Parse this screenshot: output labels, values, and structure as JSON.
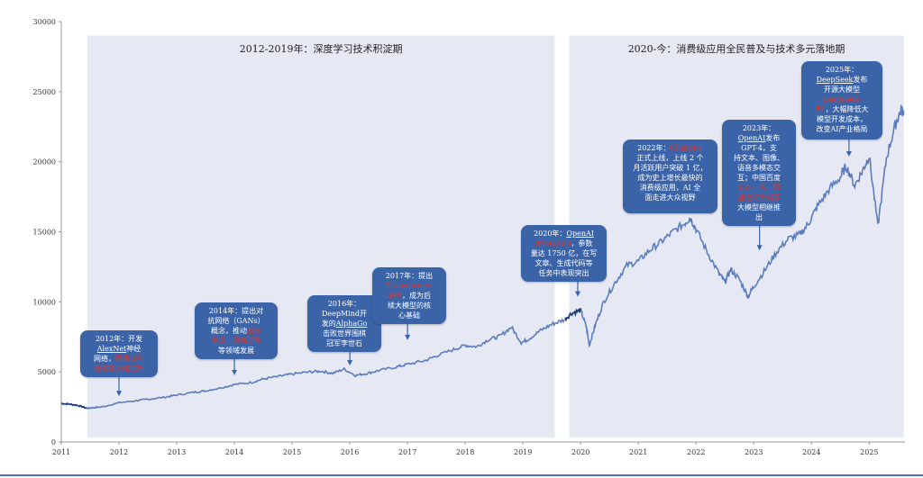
{
  "chart_data": {
    "type": "line",
    "title": "",
    "xlabel": "",
    "ylabel": "",
    "xlim": [
      2011,
      2025.6
    ],
    "ylim": [
      0,
      30000
    ],
    "y_ticks": [
      "0",
      "5000",
      "10000",
      "15000",
      "20000",
      "25000",
      "30000"
    ],
    "x_ticks": [
      "2011",
      "2012",
      "2013",
      "2014",
      "2015",
      "2016",
      "2017",
      "2018",
      "2019",
      "2020",
      "2021",
      "2022",
      "2023",
      "2024",
      "2025"
    ],
    "grid": false,
    "series": [
      {
        "color": "#5b7cbd",
        "dark_segment_color": "#1f3c7c",
        "x": [
          2011.0,
          2011.15,
          2011.3,
          2011.45,
          2011.55,
          2011.7,
          2012.0,
          2012.3,
          2012.5,
          2012.8,
          2013.0,
          2013.3,
          2013.5,
          2013.8,
          2014.0,
          2014.3,
          2014.5,
          2014.8,
          2015.0,
          2015.3,
          2015.5,
          2015.7,
          2015.9,
          2016.1,
          2016.3,
          2016.5,
          2016.8,
          2017.0,
          2017.3,
          2017.5,
          2017.8,
          2018.0,
          2018.2,
          2018.4,
          2018.6,
          2018.8,
          2018.97,
          2019.1,
          2019.3,
          2019.5,
          2019.7,
          2019.85,
          2020.0,
          2020.1,
          2020.15,
          2020.25,
          2020.4,
          2020.6,
          2020.8,
          2021.0,
          2021.2,
          2021.4,
          2021.6,
          2021.8,
          2021.9,
          2022.0,
          2022.2,
          2022.4,
          2022.5,
          2022.6,
          2022.75,
          2022.9,
          2023.0,
          2023.2,
          2023.4,
          2023.6,
          2023.8,
          2023.95,
          2024.1,
          2024.3,
          2024.5,
          2024.6,
          2024.75,
          2024.9,
          2025.0,
          2025.15,
          2025.3,
          2025.45,
          2025.55,
          2025.6
        ],
        "y": [
          2750,
          2700,
          2600,
          2400,
          2450,
          2500,
          2800,
          2950,
          3050,
          3200,
          3350,
          3550,
          3650,
          3900,
          4100,
          4250,
          4500,
          4700,
          4850,
          5000,
          5050,
          4900,
          5200,
          4750,
          4900,
          5100,
          5350,
          5550,
          5800,
          6150,
          6600,
          6900,
          6800,
          7300,
          7550,
          8200,
          7100,
          7350,
          7950,
          8400,
          8700,
          9200,
          9400,
          8200,
          6900,
          8300,
          10000,
          11400,
          12600,
          12900,
          13700,
          14300,
          15000,
          15600,
          16000,
          15200,
          13500,
          12000,
          11400,
          12300,
          11600,
          10400,
          11100,
          12300,
          13600,
          14500,
          14800,
          15600,
          16800,
          18000,
          18900,
          19700,
          18300,
          19500,
          20400,
          15400,
          20300,
          22600,
          23700,
          23600
        ]
      }
    ],
    "periods": [
      {
        "label": "2012-2019年：深度学习技术积淀期",
        "x_start": 2011.45,
        "x_end": 2019.55
      },
      {
        "label": "2020-今：消费级应用全民普及与技术多元落地期",
        "x_start": 2019.8,
        "x_end": 2025.6
      }
    ],
    "annotations": [
      {
        "year": "2012年：",
        "text": [
          [
            {
              "t": "2012年：开发"
            }
          ],
          [
            {
              "t": "AlexNet",
              "s": "ul"
            },
            {
              "t": "神经"
            }
          ],
          [
            {
              "t": "网络，"
            },
            {
              "t": "图像识别",
              "s": "hl"
            }
          ],
          [
            {
              "t": "准确率大幅提升",
              "s": "hl"
            }
          ]
        ],
        "arrow_x": 2012.0,
        "arrow_y": 3200
      },
      {
        "year": "2014年：",
        "text": [
          [
            {
              "t": "2014年：提出对"
            }
          ],
          [
            {
              "t": "抗网络（GANs）"
            }
          ],
          [
            {
              "t": "概念，推动"
            },
            {
              "t": "图像",
              "s": "hl"
            }
          ],
          [
            {
              "t": "生成、风格迁移",
              "s": "hl"
            }
          ],
          [
            {
              "t": "等领域发展"
            }
          ]
        ],
        "arrow_x": 2014.0,
        "arrow_y": 4700
      },
      {
        "year": "2016年：",
        "text": [
          [
            {
              "t": "2016年："
            }
          ],
          [
            {
              "t": "DeepMind开"
            }
          ],
          [
            {
              "t": "发的"
            },
            {
              "t": "AlphaGo",
              "s": "ul"
            }
          ],
          [
            {
              "t": "击败世界围棋"
            }
          ],
          [
            {
              "t": "冠军李世石"
            }
          ]
        ],
        "arrow_x": 2016.0,
        "arrow_y": 5400
      },
      {
        "year": "2017年：",
        "text": [
          [
            {
              "t": "2017年：提出"
            }
          ],
          [
            {
              "t": "Transformer",
              "s": "hl"
            }
          ],
          [
            {
              "t": "架构",
              "s": "hl"
            },
            {
              "t": "，成为后"
            }
          ],
          [
            {
              "t": "续大模型的核"
            }
          ],
          [
            {
              "t": "心基础"
            }
          ]
        ],
        "arrow_x": 2017.0,
        "arrow_y": 7200
      },
      {
        "year": "2020年：",
        "text": [
          [
            {
              "t": "2020年："
            },
            {
              "t": "OpenAI",
              "s": "ul"
            }
          ],
          [
            {
              "t": "发布GPT-3",
              "s": "hl"
            },
            {
              "t": "，参数"
            }
          ],
          [
            {
              "t": "量达 1750 亿，在写"
            }
          ],
          [
            {
              "t": "文章、生成代码等"
            }
          ],
          [
            {
              "t": "任务中表现突出"
            }
          ]
        ],
        "arrow_x": 2019.95,
        "arrow_y": 10300
      },
      {
        "year": "2022年：",
        "text": [
          [
            {
              "t": "2022年："
            },
            {
              "t": "ChatGPT",
              "s": "hl"
            }
          ],
          [
            {
              "t": "正式上线，上线 2 个"
            }
          ],
          [
            {
              "t": "月活跃用户突破 1 亿，"
            }
          ],
          [
            {
              "t": "成为史上增长最快的"
            }
          ],
          [
            {
              "t": "消费级应用，AI 全"
            }
          ],
          [
            {
              "t": "面走进大众视野"
            }
          ]
        ],
        "arrow_x": 2021.9,
        "arrow_y": 16500
      },
      {
        "year": "2023年：",
        "text": [
          [
            {
              "t": "2023年："
            }
          ],
          [
            {
              "t": "OpenAI",
              "s": "ul"
            },
            {
              "t": "发布"
            }
          ],
          [
            {
              "t": "GPT-4，支"
            }
          ],
          [
            {
              "t": "持文本、图像、"
            }
          ],
          [
            {
              "t": "语音多模态交"
            }
          ],
          [
            {
              "t": "互；中国百度"
            }
          ],
          [
            {
              "t": "文心一言、阿",
              "s": "hl"
            }
          ],
          [
            {
              "t": "里通义千问等",
              "s": "hl"
            }
          ],
          [
            {
              "t": "大模型相继推"
            }
          ],
          [
            {
              "t": "出"
            }
          ]
        ],
        "arrow_x": 2023.1,
        "arrow_y": 13600
      },
      {
        "year": "2025年：",
        "text": [
          [
            {
              "t": "2025年："
            }
          ],
          [
            {
              "t": "DeepSeek",
              "s": "ul"
            },
            {
              "t": "发布"
            }
          ],
          [
            {
              "t": "开源大模型"
            }
          ],
          [
            {
              "t": "DeepSeek-",
              "s": "hl"
            }
          ],
          [
            {
              "t": "R1",
              "s": "hl"
            },
            {
              "t": "，大幅降低大"
            }
          ],
          [
            {
              "t": "模型开发成本，"
            }
          ],
          [
            {
              "t": "改变AI产业格局"
            }
          ]
        ],
        "arrow_x": 2024.65,
        "arrow_y": 20300
      }
    ]
  }
}
